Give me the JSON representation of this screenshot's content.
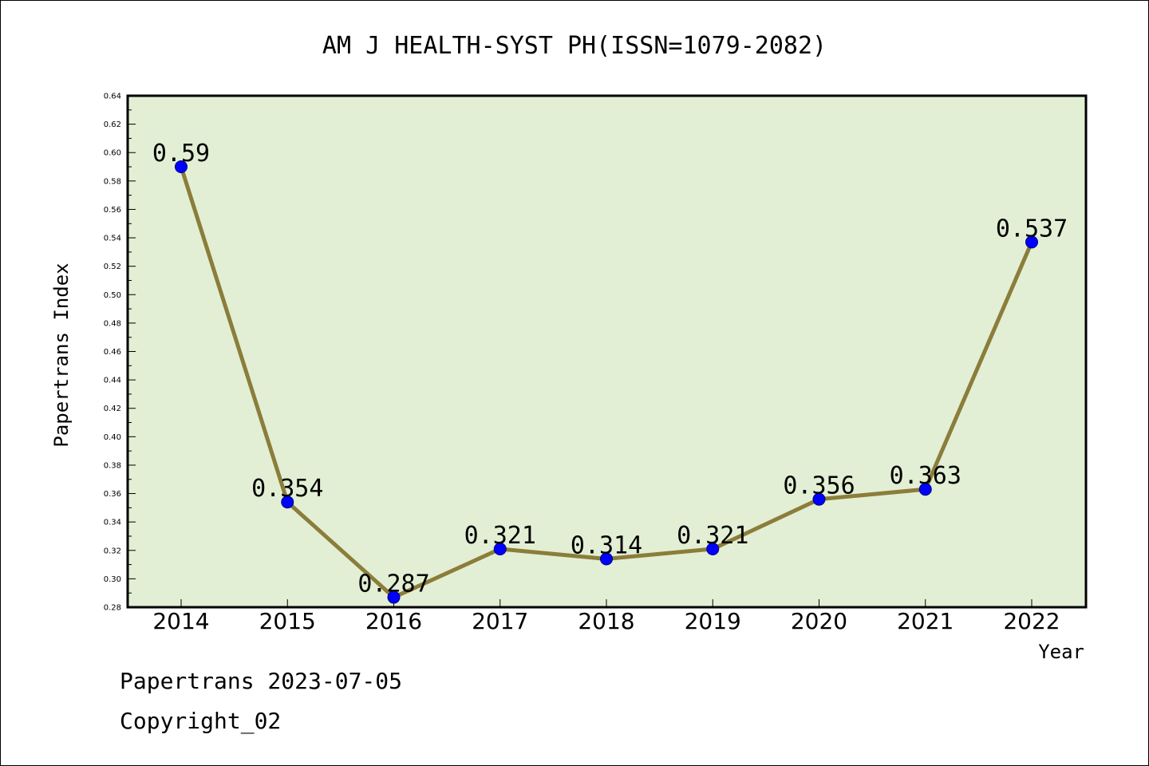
{
  "chart_data": {
    "type": "line",
    "title": "AM J HEALTH-SYST PH(ISSN=1079-2082)",
    "xlabel": "Year",
    "ylabel": "Papertrans Index",
    "categories": [
      "2014",
      "2015",
      "2016",
      "2017",
      "2018",
      "2019",
      "2020",
      "2021",
      "2022"
    ],
    "values": [
      0.59,
      0.354,
      0.287,
      0.321,
      0.314,
      0.321,
      0.356,
      0.363,
      0.537
    ],
    "data_labels": [
      "0.59",
      "0.354",
      "0.287",
      "0.321",
      "0.314",
      "0.321",
      "0.356",
      "0.363",
      "0.537"
    ],
    "ylim": [
      0.28,
      0.64
    ],
    "yticks": [
      "0.28",
      "0.30",
      "0.32",
      "0.34",
      "0.36",
      "0.38",
      "0.40",
      "0.42",
      "0.44",
      "0.46",
      "0.48",
      "0.50",
      "0.52",
      "0.54",
      "0.56",
      "0.58",
      "0.60",
      "0.62",
      "0.64"
    ],
    "grid": false,
    "line_color": "#8b7d3a",
    "marker_color": "#0000ff",
    "plot_background": "#e2efd5"
  },
  "footer": {
    "line1": "Papertrans 2023-07-05",
    "line2": "Copyright_02"
  }
}
